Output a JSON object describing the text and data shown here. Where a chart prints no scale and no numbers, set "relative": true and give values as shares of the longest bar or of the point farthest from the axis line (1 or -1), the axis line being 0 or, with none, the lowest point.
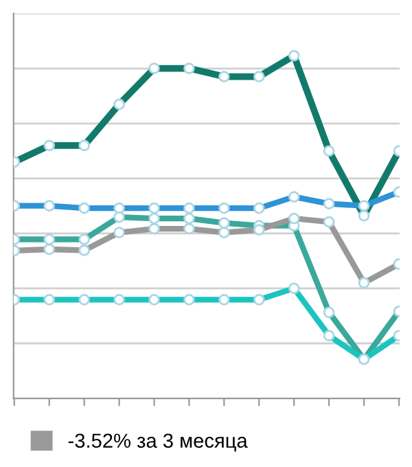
{
  "chart_data": {
    "type": "line",
    "relative": true,
    "categories": [
      null,
      null,
      null,
      null,
      null,
      null,
      null,
      null,
      null,
      null,
      null,
      null
    ],
    "series": [
      {
        "color": "#127a6b",
        "values": [
          0.69,
          0.738,
          0.738,
          0.858,
          0.963,
          0.963,
          0.939,
          0.939,
          1.0,
          0.722,
          0.533,
          0.722
        ]
      },
      {
        "color": "#2f93d6",
        "values": [
          0.562,
          0.562,
          0.555,
          0.555,
          0.555,
          0.555,
          0.555,
          0.555,
          0.588,
          0.568,
          0.562,
          0.602
        ]
      },
      {
        "color": "#3aa89a",
        "values": [
          0.464,
          0.464,
          0.464,
          0.529,
          0.525,
          0.525,
          0.512,
          0.504,
          0.504,
          0.251,
          0.114,
          0.254
        ]
      },
      {
        "name": "-3.52% за 3 месяца",
        "color": "#999999",
        "values": [
          0.431,
          0.435,
          0.432,
          0.484,
          0.495,
          0.495,
          0.484,
          0.492,
          0.525,
          0.515,
          0.337,
          0.392
        ]
      },
      {
        "color": "#1cc4c0",
        "values": [
          0.288,
          0.288,
          0.288,
          0.288,
          0.288,
          0.288,
          0.288,
          0.288,
          0.321,
          0.183,
          0.114,
          0.183
        ]
      }
    ],
    "grid": "y",
    "legend": "bottom",
    "marker": "circle",
    "line_style": "solid"
  }
}
